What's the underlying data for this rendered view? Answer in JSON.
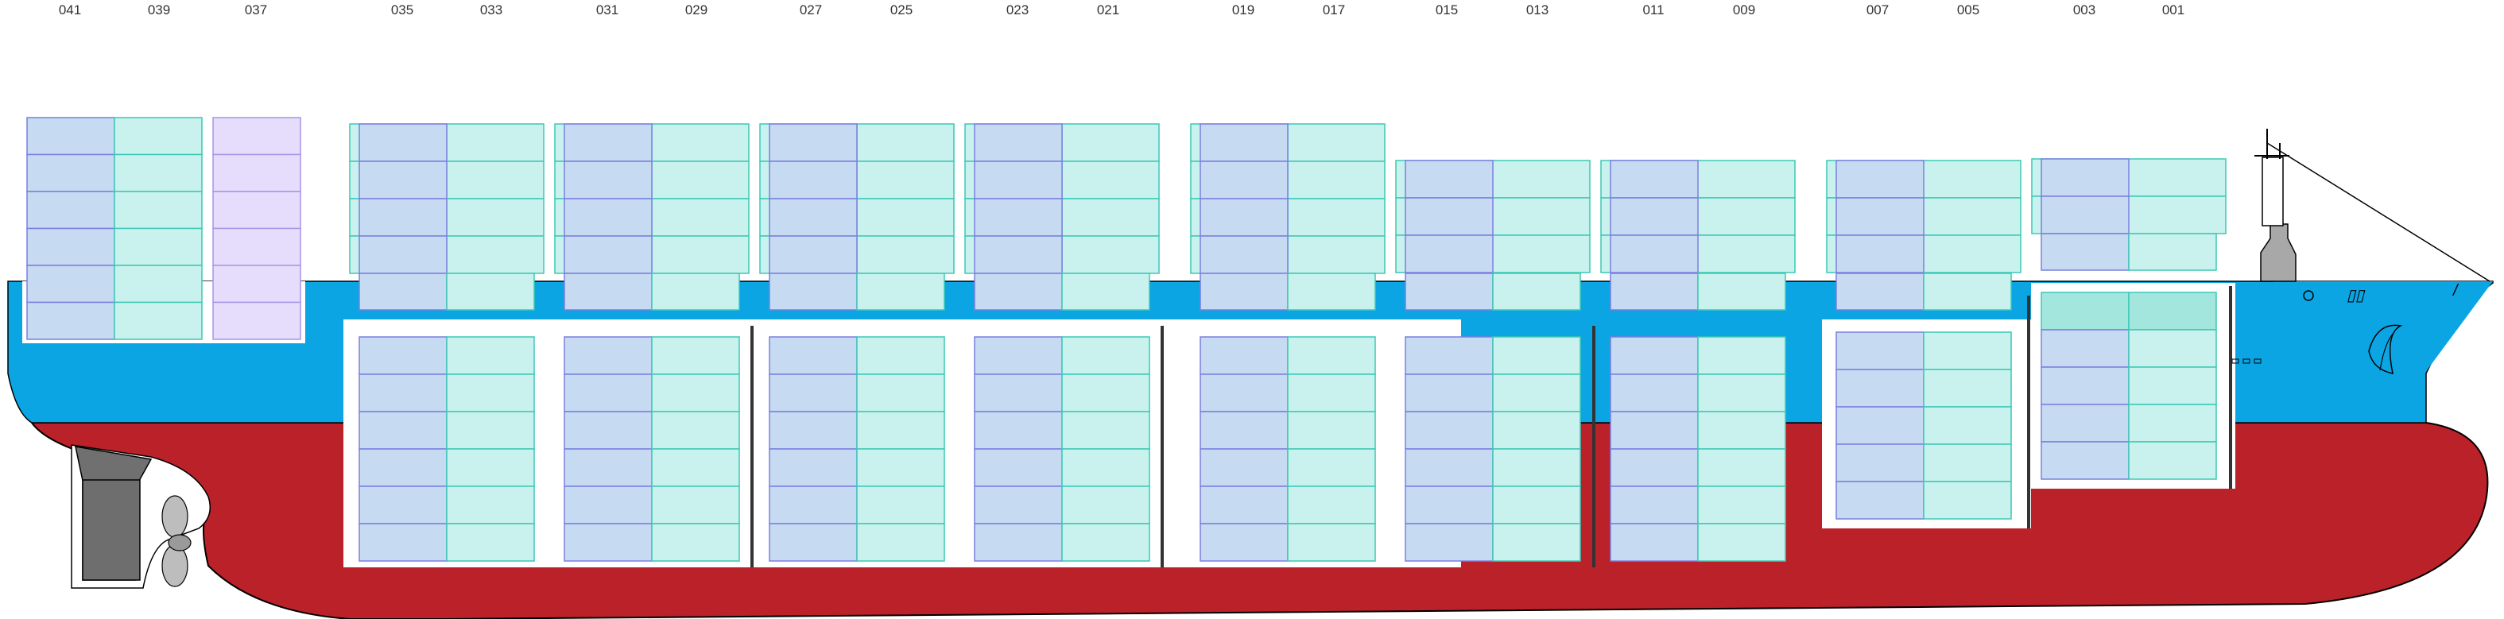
{
  "diagram": {
    "bay_labels": [
      "041",
      "039",
      "037",
      "035",
      "033",
      "031",
      "029",
      "027",
      "025",
      "023",
      "021",
      "019",
      "017",
      "015",
      "013",
      "011",
      "009",
      "007",
      "005",
      "003",
      "001"
    ],
    "colors": {
      "hull_red": "#BA2129",
      "deck_blue": "#0BA5E4",
      "container_blue": "#C6DAF2",
      "container_blue_stroke": "#7B7FDF",
      "container_teal": "#C9F2EE",
      "container_teal_stroke": "#3CC9B4",
      "container_teal_dark": "#A2E6DE",
      "container_purple": "#E5DDFB",
      "container_purple_stroke": "#A796E6",
      "superstructure_grey": "#A8A8A8",
      "rudder_grey": "#707070",
      "hatch_white": "#FFFFFF"
    },
    "icons": [
      "propeller-icon",
      "rudder-icon",
      "anchor-icon",
      "mast-icon",
      "draft-mark-icon"
    ]
  }
}
